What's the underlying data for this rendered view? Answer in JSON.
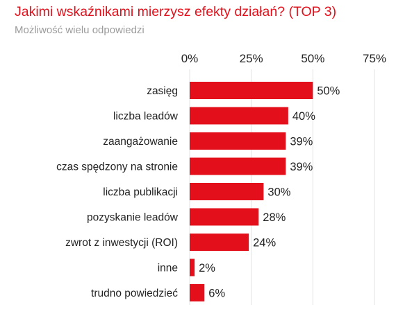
{
  "title": "Jakimi wskaźnikami mierzysz efekty działań? (TOP 3)",
  "subtitle": "Możliwość wielu odpowiedzi",
  "chart_data": {
    "type": "bar",
    "orientation": "horizontal",
    "title": "Jakimi wskaźnikami mierzysz efekty działań? (TOP 3)",
    "subtitle": "Możliwość wielu odpowiedzi",
    "categories": [
      "zasięg",
      "liczba leadów",
      "zaangażowanie",
      "czas spędzony na stronie",
      "liczba publikacji",
      "pozyskanie leadów",
      "zwrot z inwestycji (ROI)",
      "inne",
      "trudno powiedzieć"
    ],
    "values": [
      50,
      40,
      39,
      39,
      30,
      28,
      24,
      2,
      6
    ],
    "value_labels": [
      "50%",
      "40%",
      "39%",
      "39%",
      "30%",
      "28%",
      "24%",
      "2%",
      "6%"
    ],
    "xlim": [
      0,
      75
    ],
    "xticks": [
      0,
      25,
      50,
      75
    ],
    "xtick_labels": [
      "0%",
      "25%",
      "50%",
      "75%"
    ],
    "tick_position": "top",
    "grid": true,
    "bar_color": "#e3101b"
  }
}
